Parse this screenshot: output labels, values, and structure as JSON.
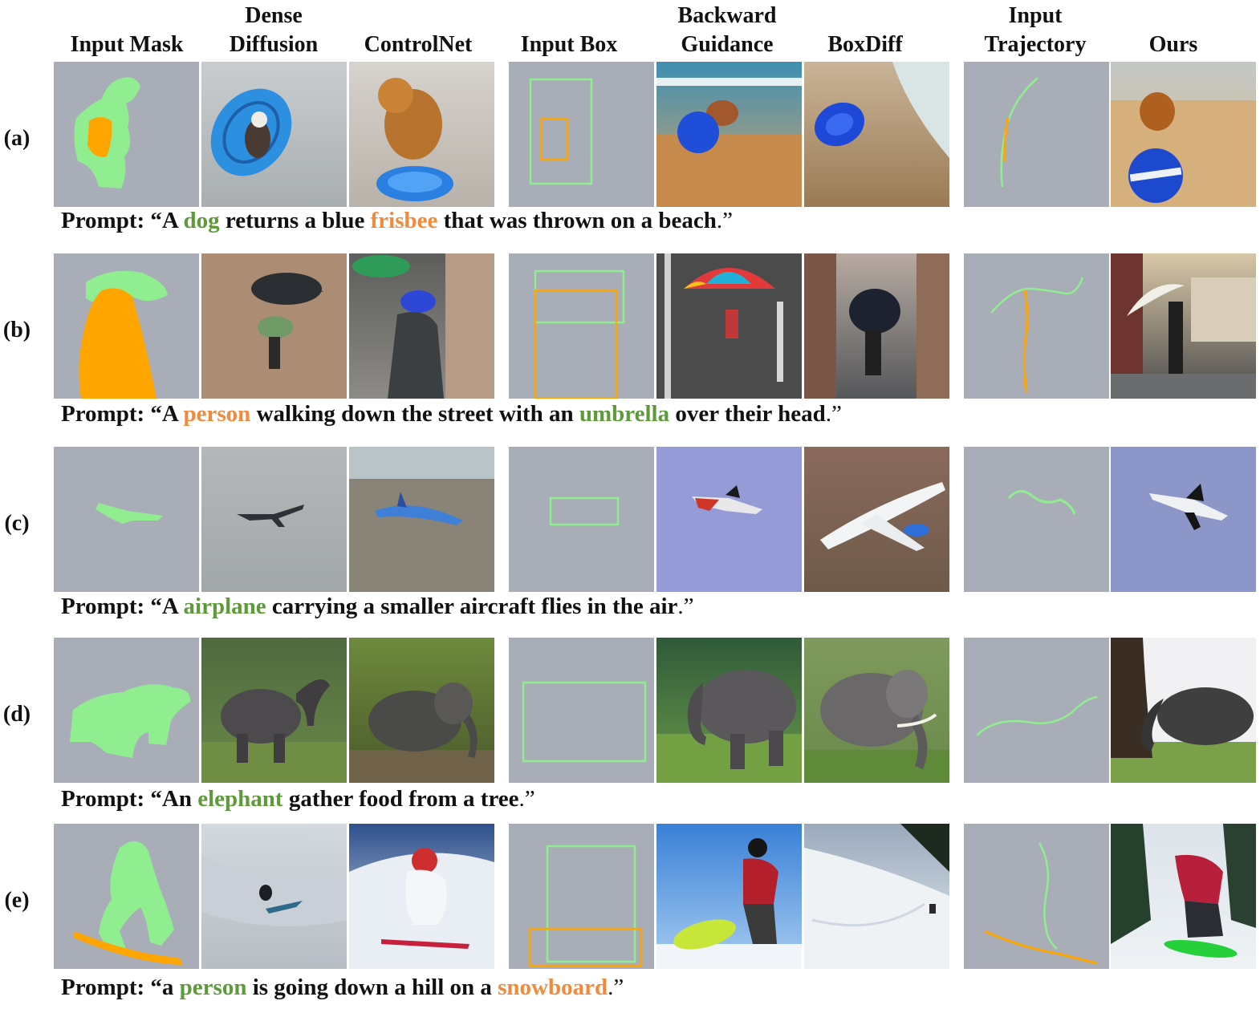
{
  "columns": [
    {
      "key": "mask",
      "lines": [
        "Input Mask"
      ]
    },
    {
      "key": "dense",
      "lines": [
        "Dense",
        "Diffusion"
      ]
    },
    {
      "key": "cnet",
      "lines": [
        "ControlNet"
      ]
    },
    {
      "key": "box",
      "lines": [
        "Input Box"
      ]
    },
    {
      "key": "bg",
      "lines": [
        "Backward",
        "Guidance"
      ]
    },
    {
      "key": "bdiff",
      "lines": [
        "BoxDiff"
      ]
    },
    {
      "key": "traj",
      "lines": [
        "Input",
        "Trajectory"
      ]
    },
    {
      "key": "ours",
      "lines": [
        "Ours"
      ]
    }
  ],
  "rows": [
    {
      "label": "(a)",
      "prompt": [
        {
          "t": "Prompt: “A ",
          "c": ""
        },
        {
          "t": "dog",
          "c": "green"
        },
        {
          "t": " returns a blue ",
          "c": ""
        },
        {
          "t": "frisbee",
          "c": "orange"
        },
        {
          "t": " that was thrown on a beach",
          "c": ""
        },
        {
          "t": ".”",
          "c": "light"
        }
      ]
    },
    {
      "label": "(b)",
      "prompt": [
        {
          "t": "Prompt: “A ",
          "c": ""
        },
        {
          "t": "person",
          "c": "orange"
        },
        {
          "t": " walking down the street with an ",
          "c": ""
        },
        {
          "t": "umbrella",
          "c": "green"
        },
        {
          "t": " over their head",
          "c": ""
        },
        {
          "t": ".”",
          "c": "light"
        }
      ]
    },
    {
      "label": "(c)",
      "prompt": [
        {
          "t": "Prompt: “A ",
          "c": ""
        },
        {
          "t": "airplane",
          "c": "green"
        },
        {
          "t": " carrying a smaller aircraft flies in the air",
          "c": ""
        },
        {
          "t": ".”",
          "c": "light"
        }
      ]
    },
    {
      "label": "(d)",
      "prompt": [
        {
          "t": "Prompt: “An ",
          "c": ""
        },
        {
          "t": "elephant",
          "c": "green"
        },
        {
          "t": " gather food from a tree",
          "c": ""
        },
        {
          "t": ".”",
          "c": "light"
        }
      ]
    },
    {
      "label": "(e)",
      "prompt": [
        {
          "t": "Prompt: “a ",
          "c": ""
        },
        {
          "t": "person",
          "c": "green"
        },
        {
          "t": " is going down a hill on a ",
          "c": ""
        },
        {
          "t": "snowboard",
          "c": "orange"
        },
        {
          "t": ".”",
          "c": "light"
        }
      ]
    }
  ],
  "colors": {
    "input_bg": "#a8adb8",
    "mask_green": "#90ee90",
    "mask_orange": "#ffa500",
    "text_green": "#5d9a3a",
    "text_orange": "#f08a3c"
  }
}
